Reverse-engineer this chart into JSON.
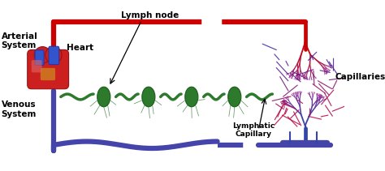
{
  "bg_color": "#ffffff",
  "arterial_color": "#cc0000",
  "venous_color": "#4444aa",
  "lymph_color": "#2d7a2d",
  "capillary_red": "#cc0000",
  "capillary_purple": "#882266",
  "capillary_blue": "#3344aa",
  "labels": {
    "arterial": "Arterial\nSystem",
    "venous": "Venous\nSystem",
    "heart": "Heart",
    "lymph_node": "Lymph node",
    "capillaries": "Capillaries",
    "lymphatic_cap": "Lymphatic\nCapillary"
  },
  "fig_width": 4.74,
  "fig_height": 2.11,
  "dpi": 100
}
